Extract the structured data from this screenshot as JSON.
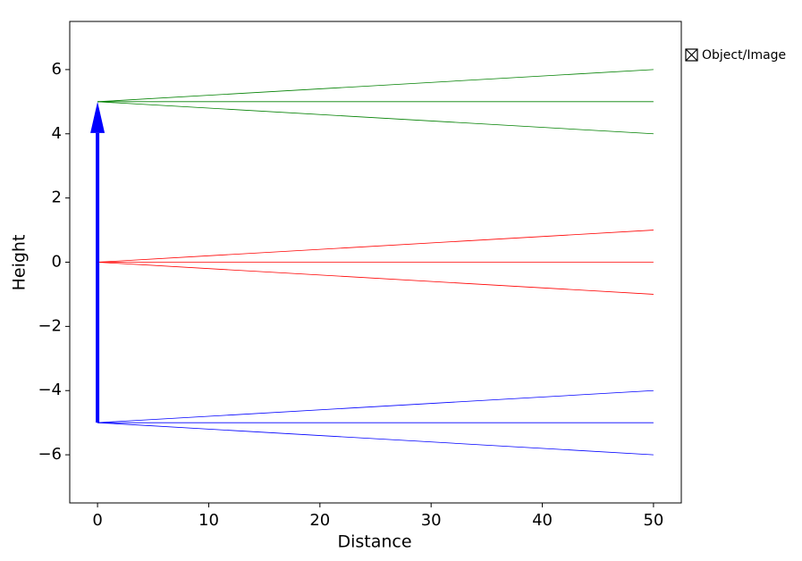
{
  "chart_data": {
    "type": "line",
    "xlabel": "Distance",
    "ylabel": "Height",
    "xlim": [
      -2.5,
      52.5
    ],
    "ylim": [
      -7.5,
      7.5
    ],
    "xticks": [
      0,
      10,
      20,
      30,
      40,
      50
    ],
    "yticks": [
      {
        "value": -6,
        "label": "−6"
      },
      {
        "value": -4,
        "label": "−4"
      },
      {
        "value": -2,
        "label": "−2"
      },
      0,
      2,
      4,
      6
    ],
    "series": [
      {
        "color": "green",
        "x": [
          0,
          50
        ],
        "values": [
          5,
          6
        ]
      },
      {
        "color": "green",
        "x": [
          0,
          50
        ],
        "values": [
          5,
          5
        ]
      },
      {
        "color": "green",
        "x": [
          0,
          50
        ],
        "values": [
          5,
          4
        ]
      },
      {
        "color": "red",
        "x": [
          0,
          50
        ],
        "values": [
          0,
          1
        ]
      },
      {
        "color": "red",
        "x": [
          0,
          50
        ],
        "values": [
          0,
          0
        ]
      },
      {
        "color": "red",
        "x": [
          0,
          50
        ],
        "values": [
          0,
          -1
        ]
      },
      {
        "color": "blue",
        "x": [
          0,
          50
        ],
        "values": [
          -5,
          -4
        ]
      },
      {
        "color": "blue",
        "x": [
          0,
          50
        ],
        "values": [
          -5,
          -5
        ]
      },
      {
        "color": "blue",
        "x": [
          0,
          50
        ],
        "values": [
          -5,
          -6
        ]
      },
      {
        "name": "Object/Image",
        "type": "arrow",
        "color": "blue",
        "x": [
          0,
          0
        ],
        "values": [
          -5,
          5
        ]
      }
    ],
    "legend": "right"
  }
}
